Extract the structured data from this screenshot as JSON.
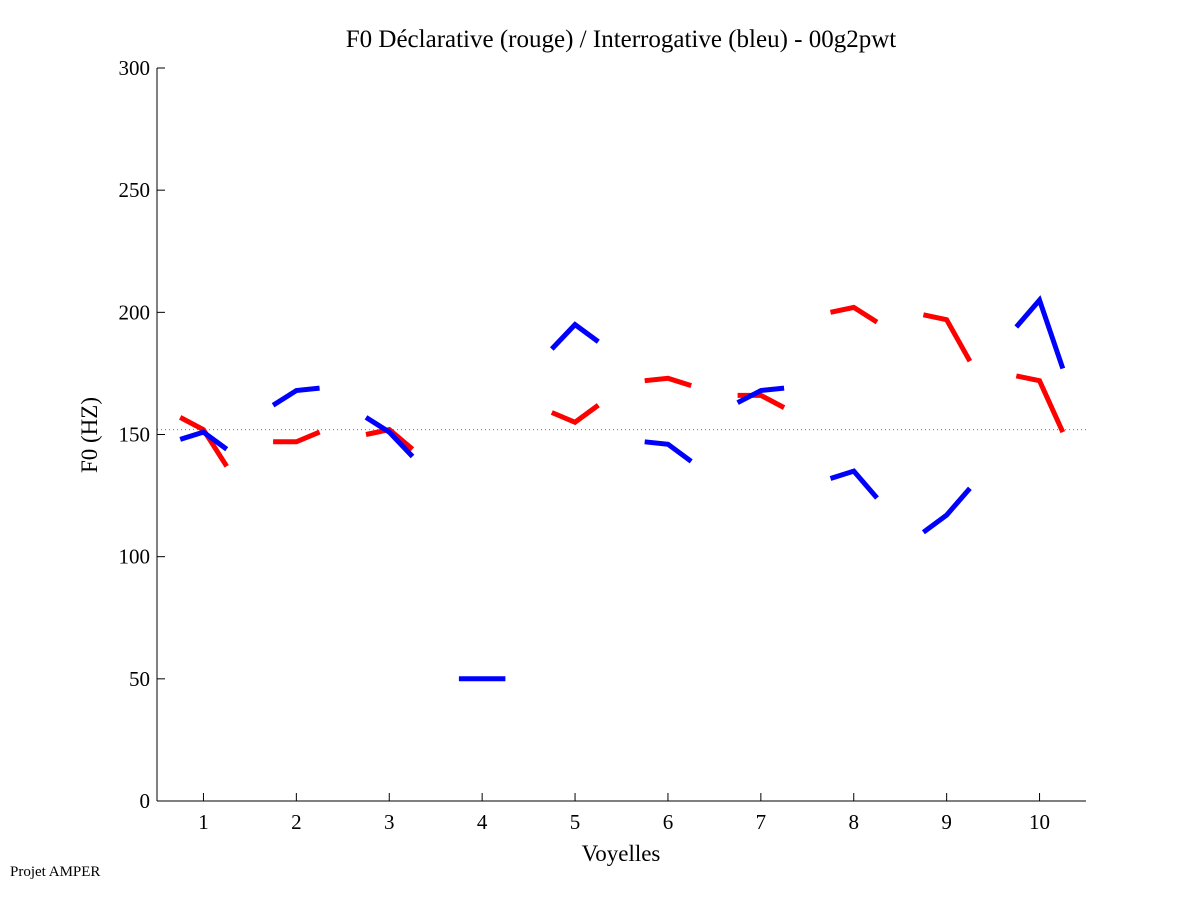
{
  "chart_data": {
    "type": "line",
    "title": "F0 Déclarative (rouge) / Interrogative (bleu) - 00g2pwt",
    "xlabel": "Voyelles",
    "ylabel": "F0 (HZ)",
    "xlim": [
      0.5,
      10.5
    ],
    "ylim": [
      0,
      300
    ],
    "x_ticks": [
      1,
      2,
      3,
      4,
      5,
      6,
      7,
      8,
      9,
      10
    ],
    "y_ticks": [
      0,
      50,
      100,
      150,
      200,
      250,
      300
    ],
    "reference_line": {
      "y": 152,
      "color": "#22aa22",
      "style": "dotted"
    },
    "series": [
      {
        "color": "#ff0000",
        "segments": [
          {
            "x": [
              0.75,
              1.0,
              1.25
            ],
            "y": [
              157,
              152,
              137
            ]
          },
          {
            "x": [
              1.75,
              2.0,
              2.25
            ],
            "y": [
              147,
              147,
              151
            ]
          },
          {
            "x": [
              2.75,
              3.0,
              3.25
            ],
            "y": [
              150,
              152,
              144
            ]
          },
          {
            "x": [
              4.75,
              5.0,
              5.25
            ],
            "y": [
              159,
              155,
              162
            ]
          },
          {
            "x": [
              5.75,
              6.0,
              6.25
            ],
            "y": [
              172,
              173,
              170
            ]
          },
          {
            "x": [
              6.75,
              7.0,
              7.25
            ],
            "y": [
              166,
              166,
              161
            ]
          },
          {
            "x": [
              7.75,
              8.0,
              8.25
            ],
            "y": [
              200,
              202,
              196
            ]
          },
          {
            "x": [
              8.75,
              9.0,
              9.25
            ],
            "y": [
              199,
              197,
              180
            ]
          },
          {
            "x": [
              9.75,
              10.0,
              10.25
            ],
            "y": [
              174,
              172,
              151
            ]
          }
        ]
      },
      {
        "color": "#0000ff",
        "segments": [
          {
            "x": [
              0.75,
              1.0,
              1.25
            ],
            "y": [
              148,
              151,
              144
            ]
          },
          {
            "x": [
              1.75,
              2.0,
              2.25
            ],
            "y": [
              162,
              168,
              169
            ]
          },
          {
            "x": [
              2.75,
              3.0,
              3.25
            ],
            "y": [
              157,
              151,
              141
            ]
          },
          {
            "x": [
              3.75,
              4.0,
              4.25
            ],
            "y": [
              50,
              50,
              50
            ]
          },
          {
            "x": [
              4.75,
              5.0,
              5.25
            ],
            "y": [
              185,
              195,
              188
            ]
          },
          {
            "x": [
              5.75,
              6.0,
              6.25
            ],
            "y": [
              147,
              146,
              139
            ]
          },
          {
            "x": [
              6.75,
              7.0,
              7.25
            ],
            "y": [
              163,
              168,
              169
            ]
          },
          {
            "x": [
              7.75,
              8.0,
              8.25
            ],
            "y": [
              132,
              135,
              124
            ]
          },
          {
            "x": [
              8.75,
              9.0,
              9.25
            ],
            "y": [
              110,
              117,
              128
            ]
          },
          {
            "x": [
              9.75,
              10.0,
              10.25
            ],
            "y": [
              194,
              205,
              177
            ]
          }
        ]
      }
    ]
  },
  "footer": {
    "credit": "Projet AMPER"
  }
}
